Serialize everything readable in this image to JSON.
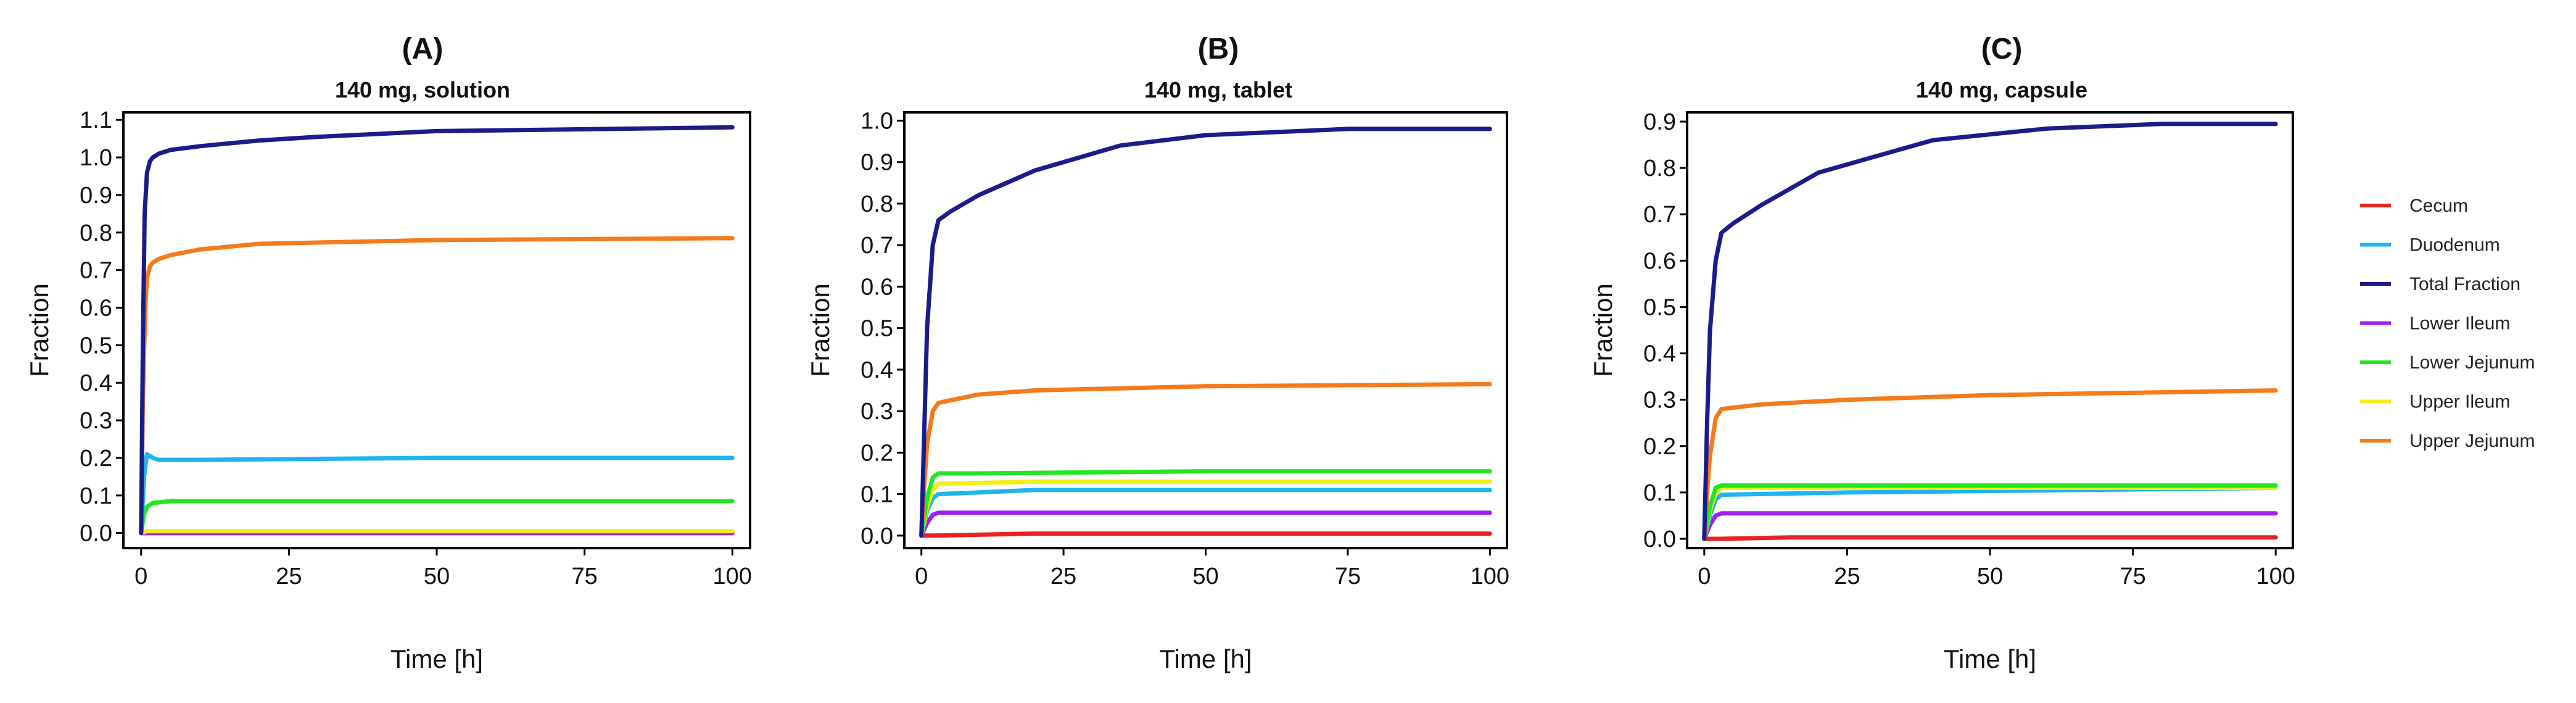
{
  "legend": {
    "placement": "right",
    "entries": [
      {
        "label": "Cecum",
        "color": "#e8231f"
      },
      {
        "label": "Duodenum",
        "color": "#1fb4ee"
      },
      {
        "label": "Total Fraction",
        "color": "#1b1b8c"
      },
      {
        "label": "Lower Ileum",
        "color": "#a020f0"
      },
      {
        "label": "Lower Jejunum",
        "color": "#22e622"
      },
      {
        "label": "Upper Ileum",
        "color": "#f2ee1a"
      },
      {
        "label": "Upper Jejunum",
        "color": "#f57b1a"
      }
    ]
  },
  "chart_data": [
    {
      "type": "line",
      "panel_label": "(A)",
      "title": "140 mg, solution",
      "xlabel": "Time [h]",
      "ylabel": "Fraction",
      "xlim": [
        -3,
        103
      ],
      "ylim": [
        -0.04,
        1.12
      ],
      "xticks": [
        0,
        25,
        50,
        75,
        100
      ],
      "yticks": [
        0.0,
        0.1,
        0.2,
        0.3,
        0.4,
        0.5,
        0.6,
        0.7,
        0.8,
        0.9,
        1.0,
        1.1
      ],
      "ytick_labels": [
        "0.0",
        "0.1",
        "0.2",
        "0.3",
        "0.4",
        "0.5",
        "0.6",
        "0.7",
        "0.8",
        "0.9",
        "1.0",
        "1.1"
      ],
      "series": [
        {
          "name": "Cecum",
          "x": [
            0,
            100
          ],
          "y": [
            0.0,
            0.0
          ]
        },
        {
          "name": "Lower Ileum",
          "x": [
            0,
            100
          ],
          "y": [
            0.0,
            0.0
          ]
        },
        {
          "name": "Upper Ileum",
          "x": [
            0,
            1,
            100
          ],
          "y": [
            0.0,
            0.005,
            0.005
          ]
        },
        {
          "name": "Lower Jejunum",
          "x": [
            0,
            0.5,
            1,
            2,
            5,
            20,
            100
          ],
          "y": [
            0.0,
            0.05,
            0.07,
            0.08,
            0.085,
            0.085,
            0.085
          ]
        },
        {
          "name": "Duodenum",
          "x": [
            0,
            0.5,
            1,
            2,
            3,
            5,
            10,
            50,
            100
          ],
          "y": [
            0.0,
            0.15,
            0.21,
            0.2,
            0.195,
            0.195,
            0.195,
            0.2,
            0.2
          ]
        },
        {
          "name": "Upper Jejunum",
          "x": [
            0,
            0.3,
            0.7,
            1,
            1.5,
            2,
            3,
            5,
            10,
            20,
            50,
            100
          ],
          "y": [
            0.0,
            0.35,
            0.6,
            0.68,
            0.71,
            0.72,
            0.73,
            0.74,
            0.755,
            0.77,
            0.78,
            0.785
          ]
        },
        {
          "name": "Total Fraction",
          "x": [
            0,
            0.3,
            0.6,
            1,
            1.5,
            2,
            3,
            5,
            10,
            20,
            30,
            50,
            75,
            100
          ],
          "y": [
            0.0,
            0.5,
            0.85,
            0.96,
            0.99,
            1.0,
            1.01,
            1.02,
            1.03,
            1.045,
            1.055,
            1.07,
            1.075,
            1.08
          ]
        }
      ]
    },
    {
      "type": "line",
      "panel_label": "(B)",
      "title": "140 mg, tablet",
      "xlabel": "Time [h]",
      "ylabel": "Fraction",
      "xlim": [
        -3,
        103
      ],
      "ylim": [
        -0.03,
        1.02
      ],
      "xticks": [
        0,
        25,
        50,
        75,
        100
      ],
      "yticks": [
        0.0,
        0.1,
        0.2,
        0.3,
        0.4,
        0.5,
        0.6,
        0.7,
        0.8,
        0.9,
        1.0
      ],
      "ytick_labels": [
        "0.0",
        "0.1",
        "0.2",
        "0.3",
        "0.4",
        "0.5",
        "0.6",
        "0.7",
        "0.8",
        "0.9",
        "1.0"
      ],
      "series": [
        {
          "name": "Cecum",
          "x": [
            0,
            2,
            20,
            100
          ],
          "y": [
            0.0,
            0.0,
            0.005,
            0.005
          ]
        },
        {
          "name": "Lower Ileum",
          "x": [
            0,
            1,
            2,
            3,
            100
          ],
          "y": [
            0.0,
            0.03,
            0.05,
            0.055,
            0.055
          ]
        },
        {
          "name": "Duodenum",
          "x": [
            0,
            1,
            2,
            3,
            20,
            100
          ],
          "y": [
            0.0,
            0.06,
            0.09,
            0.1,
            0.11,
            0.11
          ]
        },
        {
          "name": "Upper Ileum",
          "x": [
            0,
            1,
            2,
            3,
            20,
            100
          ],
          "y": [
            0.0,
            0.07,
            0.11,
            0.125,
            0.13,
            0.13
          ]
        },
        {
          "name": "Lower Jejunum",
          "x": [
            0,
            1,
            2,
            3,
            10,
            50,
            100
          ],
          "y": [
            0.0,
            0.09,
            0.14,
            0.15,
            0.15,
            0.155,
            0.155
          ]
        },
        {
          "name": "Upper Jejunum",
          "x": [
            0,
            0.5,
            1,
            2,
            3,
            10,
            20,
            50,
            100
          ],
          "y": [
            0.0,
            0.12,
            0.22,
            0.3,
            0.32,
            0.34,
            0.35,
            0.36,
            0.365
          ]
        },
        {
          "name": "Total Fraction",
          "x": [
            0,
            0.5,
            1,
            2,
            3,
            5,
            10,
            20,
            35,
            50,
            75,
            100
          ],
          "y": [
            0.0,
            0.25,
            0.5,
            0.7,
            0.76,
            0.78,
            0.82,
            0.88,
            0.94,
            0.965,
            0.98,
            0.98
          ]
        }
      ]
    },
    {
      "type": "line",
      "panel_label": "(C)",
      "title": "140 mg, capsule",
      "xlabel": "Time [h]",
      "ylabel": "Fraction",
      "xlim": [
        -3,
        103
      ],
      "ylim": [
        -0.02,
        0.92
      ],
      "xticks": [
        0,
        25,
        50,
        75,
        100
      ],
      "yticks": [
        0.0,
        0.1,
        0.2,
        0.3,
        0.4,
        0.5,
        0.6,
        0.7,
        0.8,
        0.9
      ],
      "ytick_labels": [
        "0.0",
        "0.1",
        "0.2",
        "0.3",
        "0.4",
        "0.5",
        "0.6",
        "0.7",
        "0.8",
        "0.9"
      ],
      "series": [
        {
          "name": "Cecum",
          "x": [
            0,
            3,
            15,
            100
          ],
          "y": [
            0.0,
            0.0,
            0.003,
            0.003
          ]
        },
        {
          "name": "Lower Ileum",
          "x": [
            0,
            1,
            2,
            3,
            100
          ],
          "y": [
            0.0,
            0.03,
            0.05,
            0.055,
            0.055
          ]
        },
        {
          "name": "Duodenum",
          "x": [
            0,
            1,
            2,
            3,
            25,
            100
          ],
          "y": [
            0.0,
            0.05,
            0.085,
            0.095,
            0.1,
            0.11
          ]
        },
        {
          "name": "Upper Ileum",
          "x": [
            0,
            1,
            2,
            3,
            25,
            100
          ],
          "y": [
            0.0,
            0.06,
            0.1,
            0.11,
            0.11,
            0.11
          ]
        },
        {
          "name": "Lower Jejunum",
          "x": [
            0,
            1,
            2,
            3,
            10,
            100
          ],
          "y": [
            0.0,
            0.07,
            0.11,
            0.115,
            0.115,
            0.115
          ]
        },
        {
          "name": "Upper Jejunum",
          "x": [
            0,
            0.5,
            1,
            2,
            3,
            10,
            25,
            50,
            100
          ],
          "y": [
            0.0,
            0.1,
            0.18,
            0.26,
            0.28,
            0.29,
            0.3,
            0.31,
            0.32
          ]
        },
        {
          "name": "Total Fraction",
          "x": [
            0,
            0.5,
            1,
            2,
            3,
            5,
            10,
            20,
            40,
            60,
            80,
            100
          ],
          "y": [
            0.0,
            0.25,
            0.45,
            0.6,
            0.66,
            0.68,
            0.72,
            0.79,
            0.86,
            0.885,
            0.895,
            0.895
          ]
        }
      ]
    }
  ]
}
